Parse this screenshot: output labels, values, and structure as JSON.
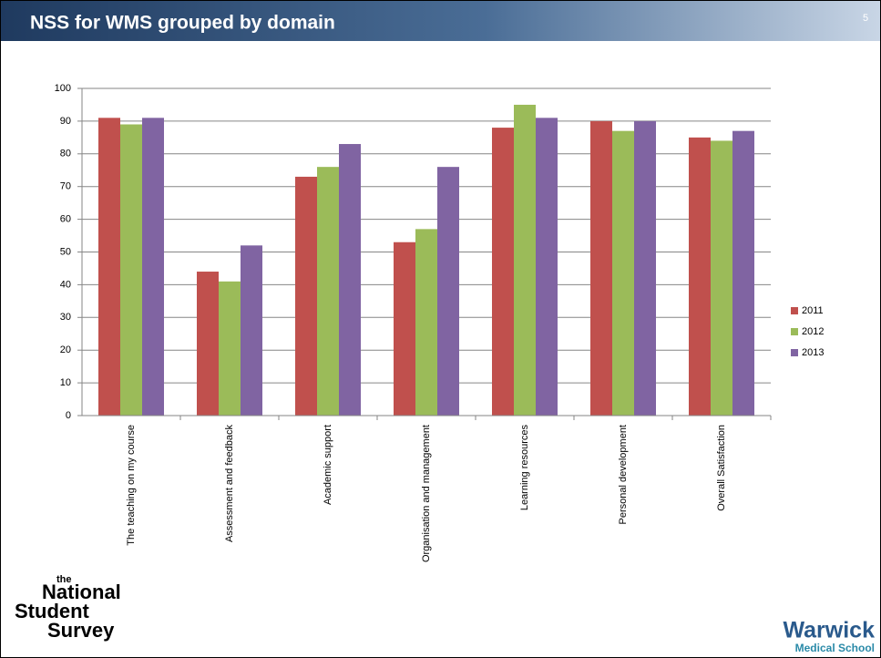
{
  "slide": {
    "title": "NSS for WMS grouped by domain",
    "page_number": "5",
    "logo_left": [
      "the",
      "National",
      "Student",
      "Survey"
    ],
    "logo_right": [
      "Warwick",
      "Medical School"
    ]
  },
  "chart_data": {
    "type": "bar",
    "categories": [
      "The teaching on my course",
      "Assessment and feedback",
      "Academic support",
      "Organisation and management",
      "Learning resources",
      "Personal development",
      "Overall Satisfaction"
    ],
    "series": [
      {
        "name": "2011",
        "color": "#c0504d",
        "values": [
          91,
          44,
          73,
          53,
          88,
          90,
          85
        ]
      },
      {
        "name": "2012",
        "color": "#9bbb59",
        "values": [
          89,
          41,
          76,
          57,
          95,
          87,
          84
        ]
      },
      {
        "name": "2013",
        "color": "#8064a2",
        "values": [
          91,
          52,
          83,
          76,
          91,
          90,
          87
        ]
      }
    ],
    "ylim": [
      0,
      100
    ],
    "yticks": [
      0,
      10,
      20,
      30,
      40,
      50,
      60,
      70,
      80,
      90,
      100
    ],
    "grid": true,
    "legend": "right"
  }
}
